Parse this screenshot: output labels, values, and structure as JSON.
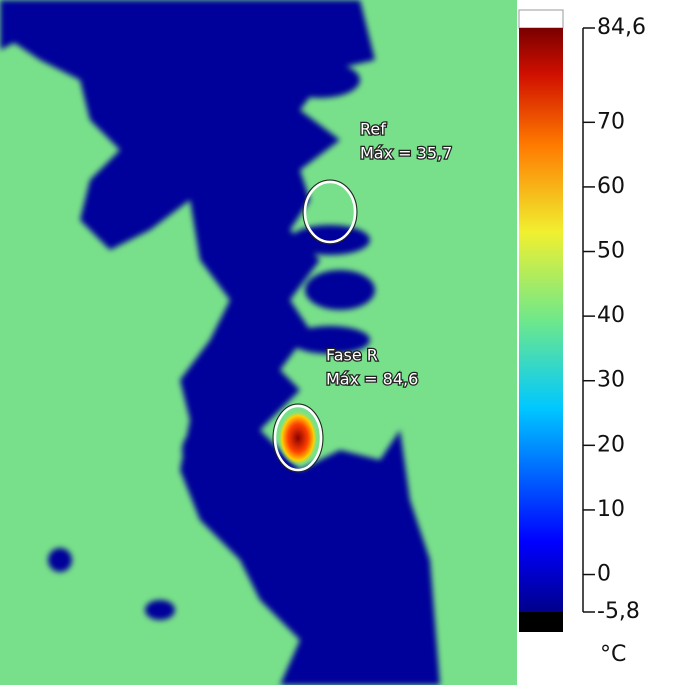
{
  "markers": [
    {
      "label": "Ref",
      "reading": "Máx = 35,7"
    },
    {
      "label": "Fase R",
      "reading": "Máx = 84,6"
    }
  ],
  "colorbar": {
    "range": [
      -5.8,
      84.6
    ],
    "ticks": [
      {
        "value": 84.6,
        "label": "84,6"
      },
      70,
      60,
      50,
      40,
      30,
      20,
      10,
      0,
      {
        "value": -5.8,
        "label": "-5,8"
      }
    ],
    "unit": "°C"
  }
}
